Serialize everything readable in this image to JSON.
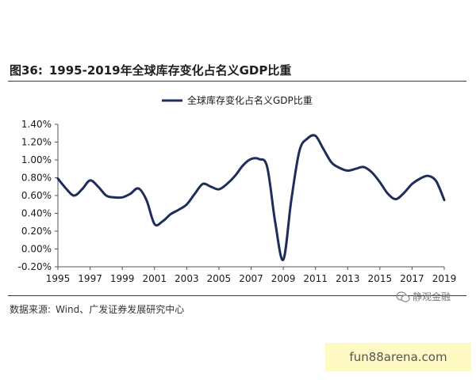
{
  "figure": {
    "label": "图36:",
    "title": "1995-2019年全球库存变化占名义GDP比重"
  },
  "source": {
    "label": "数据来源:",
    "text": "Wind、广发证券发展研究中心"
  },
  "wechat": {
    "icon": "wechat-icon",
    "name": "静观金融"
  },
  "watermark": {
    "text": "fun88arena.com"
  },
  "colors": {
    "line": "#1f2d5c",
    "axis": "#555555",
    "text": "#1a1a1a",
    "watermark_bg": "#fff9c4"
  },
  "chart_data": {
    "type": "line",
    "title": "",
    "xlabel": "",
    "ylabel": "",
    "grid": false,
    "legend_position": "top-center",
    "ylim": [
      -0.2,
      1.4
    ],
    "yticks": [
      -0.2,
      0.0,
      0.2,
      0.4,
      0.6,
      0.8,
      1.0,
      1.2,
      1.4
    ],
    "ytick_labels": [
      "-0.20%",
      "0.00%",
      "0.20%",
      "0.40%",
      "0.60%",
      "0.80%",
      "1.00%",
      "1.20%",
      "1.40%"
    ],
    "xlim": [
      1995,
      2019
    ],
    "xticks": [
      1995,
      1997,
      1999,
      2001,
      2003,
      2005,
      2007,
      2009,
      2011,
      2013,
      2015,
      2017,
      2019
    ],
    "xtick_labels": [
      "1995",
      "1997",
      "1999",
      "2001",
      "2003",
      "2005",
      "2007",
      "2009",
      "2011",
      "2013",
      "2015",
      "2017",
      "2019"
    ],
    "series": [
      {
        "name": "全球库存变化占名义GDP比重",
        "unit": "%",
        "x": [
          1995,
          1995.5,
          1996,
          1996.5,
          1997,
          1997.5,
          1998,
          1998.5,
          1999,
          1999.5,
          2000,
          2000.5,
          2001,
          2001.5,
          2002,
          2002.5,
          2003,
          2003.5,
          2004,
          2004.5,
          2005,
          2005.5,
          2006,
          2006.5,
          2007,
          2007.5,
          2008,
          2008.5,
          2009,
          2009.5,
          2010,
          2010.5,
          2011,
          2011.5,
          2012,
          2012.5,
          2013,
          2013.5,
          2014,
          2014.5,
          2015,
          2015.5,
          2016,
          2016.5,
          2017,
          2017.5,
          2018,
          2018.5,
          2019
        ],
        "y": [
          0.79,
          0.68,
          0.6,
          0.67,
          0.77,
          0.7,
          0.6,
          0.58,
          0.58,
          0.62,
          0.68,
          0.55,
          0.28,
          0.31,
          0.39,
          0.44,
          0.5,
          0.62,
          0.73,
          0.7,
          0.67,
          0.73,
          0.82,
          0.94,
          1.01,
          1.01,
          0.92,
          0.3,
          -0.12,
          0.55,
          1.1,
          1.24,
          1.27,
          1.12,
          0.97,
          0.91,
          0.88,
          0.9,
          0.92,
          0.86,
          0.75,
          0.62,
          0.56,
          0.63,
          0.73,
          0.79,
          0.82,
          0.76,
          0.55
        ]
      }
    ]
  }
}
